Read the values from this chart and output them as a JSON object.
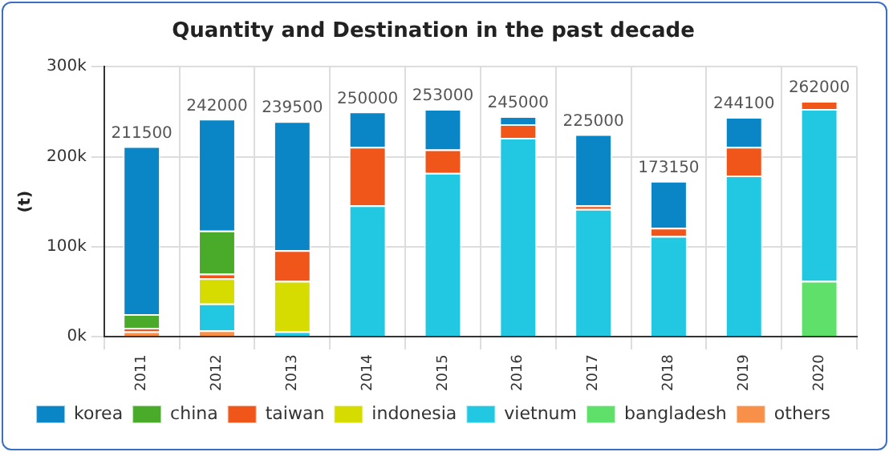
{
  "chart_data": {
    "type": "bar",
    "stacked": true,
    "title": "Quantity and Destination in the past decade",
    "ylabel": "(t)",
    "categories": [
      "2011",
      "2012",
      "2013",
      "2014",
      "2015",
      "2016",
      "2017",
      "2018",
      "2019",
      "2020"
    ],
    "series": [
      {
        "name": "others",
        "color": "#f8904a",
        "values": [
          6000,
          7000,
          null,
          null,
          null,
          null,
          null,
          null,
          null,
          null
        ]
      },
      {
        "name": "bangladesh",
        "color": "#5ee06a",
        "values": [
          null,
          null,
          null,
          null,
          null,
          null,
          null,
          null,
          null,
          62000
        ]
      },
      {
        "name": "vietnum",
        "color": "#22c8e2",
        "values": [
          null,
          30000,
          6000,
          146000,
          182000,
          221000,
          142000,
          112000,
          179000,
          191000
        ]
      },
      {
        "name": "indonesia",
        "color": "#d6dc00",
        "values": [
          null,
          28000,
          56000,
          null,
          null,
          null,
          null,
          null,
          null,
          null
        ]
      },
      {
        "name": "taiwan",
        "color": "#f0561a",
        "values": [
          4000,
          5000,
          34000,
          65000,
          26000,
          15000,
          4000,
          9000,
          32000,
          9000
        ]
      },
      {
        "name": "china",
        "color": "#4aab2a",
        "values": [
          15000,
          48000,
          null,
          null,
          null,
          null,
          null,
          null,
          null,
          null
        ]
      },
      {
        "name": "korea",
        "color": "#0a86c6",
        "values": [
          186500,
          124000,
          143500,
          39000,
          45000,
          9000,
          79000,
          52150,
          33100,
          null
        ]
      }
    ],
    "totals": [
      "211500",
      "242000",
      "239500",
      "250000",
      "253000",
      "245000",
      "225000",
      "173150",
      "244100",
      "262000"
    ],
    "ylim": [
      0,
      300000
    ],
    "yticks": [
      {
        "value": 0,
        "label": "0k"
      },
      {
        "value": 100000,
        "label": "100k"
      },
      {
        "value": 200000,
        "label": "200k"
      },
      {
        "value": 300000,
        "label": "300k"
      }
    ],
    "grid": true,
    "legend": "bottom"
  }
}
